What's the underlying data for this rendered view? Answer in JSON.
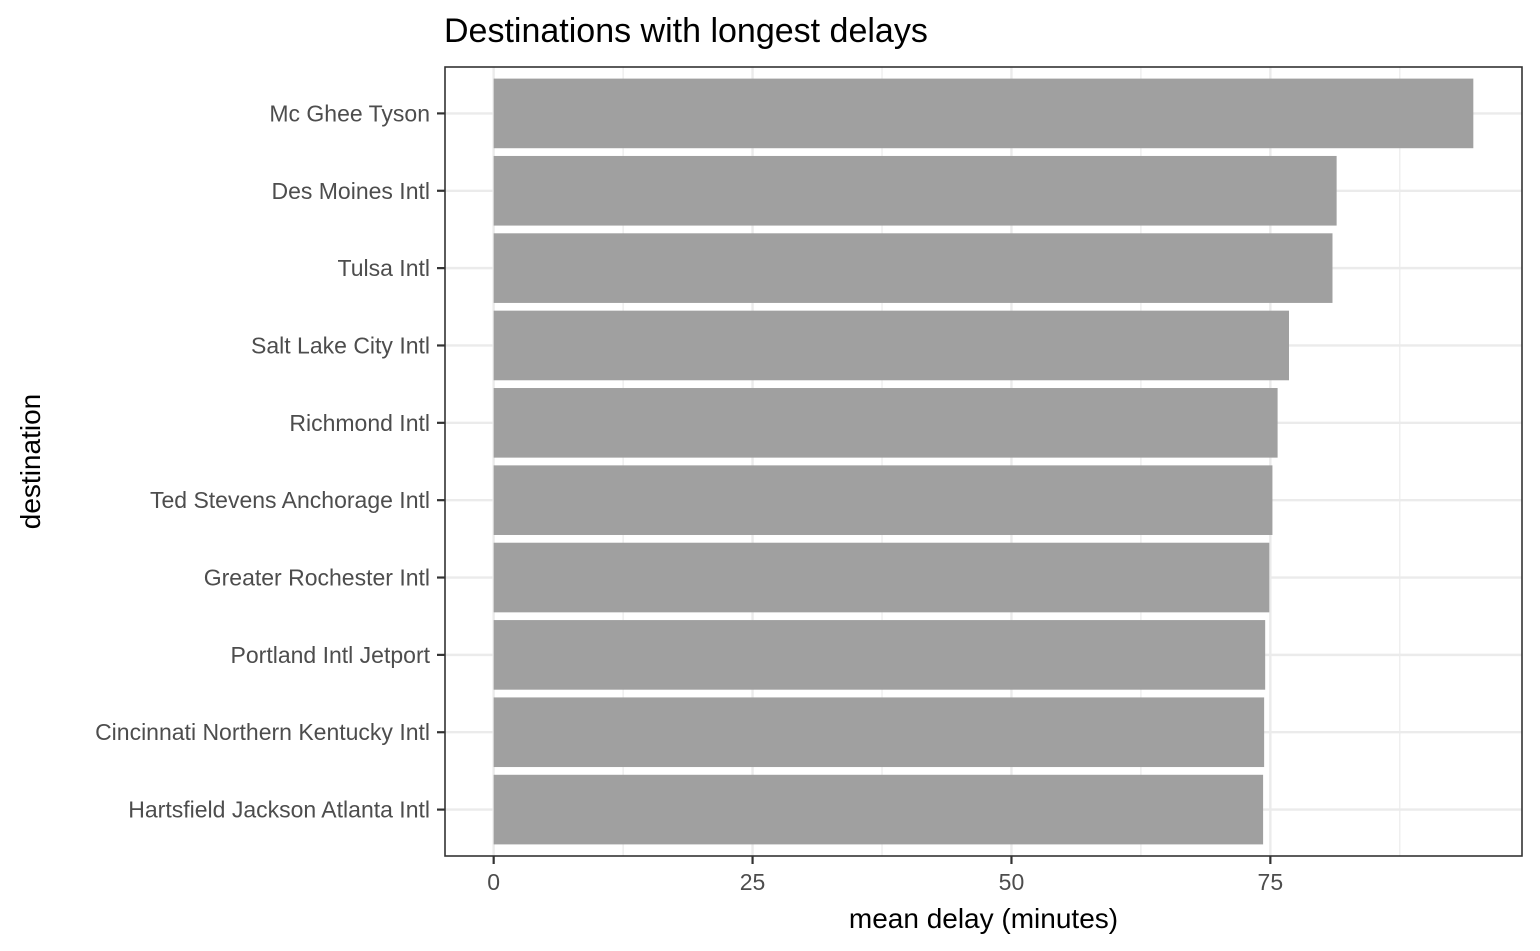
{
  "chart_data": {
    "type": "bar",
    "orientation": "horizontal",
    "title": "Destinations with longest delays",
    "xlabel": "mean delay (minutes)",
    "ylabel": "destination",
    "categories": [
      "Mc Ghee Tyson",
      "Des Moines Intl",
      "Tulsa Intl",
      "Salt Lake City Intl",
      "Richmond Intl",
      "Ted Stevens Anchorage Intl",
      "Greater Rochester Intl",
      "Portland Intl Jetport",
      "Cincinnati Northern Kentucky Intl",
      "Hartsfield Jackson Atlanta Intl"
    ],
    "values": [
      94.6,
      81.4,
      81.0,
      76.8,
      75.7,
      75.2,
      74.9,
      74.5,
      74.4,
      74.3
    ],
    "xlim": [
      -4.7,
      99.3
    ],
    "xticks": [
      0,
      25,
      50,
      75
    ],
    "xtick_labels": [
      "0",
      "25",
      "50",
      "75"
    ],
    "grid": true,
    "bar_color": "#a0a0a0",
    "legend": "none",
    "theme": "bw"
  }
}
